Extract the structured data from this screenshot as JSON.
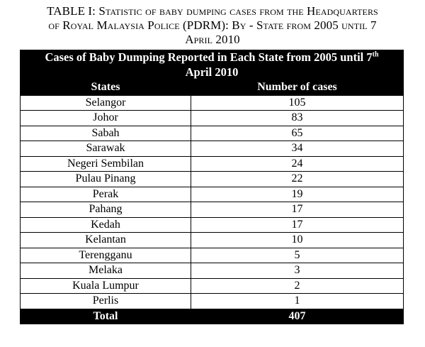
{
  "caption": {
    "line1": "TABLE I: Statistic of baby dumping cases from the Headquarters",
    "line2": "of Royal Malaysia Police (PDRM): By - State from 2005 until 7",
    "line3": "April 2010"
  },
  "table": {
    "title_main": "Cases of Baby Dumping Reported in Each State from 2005 until 7",
    "title_sup": "th",
    "title_line2": "April 2010",
    "columns": [
      "States",
      "Number of cases"
    ],
    "rows": [
      {
        "state": "Selangor",
        "cases": "105"
      },
      {
        "state": "Johor",
        "cases": "83"
      },
      {
        "state": "Sabah",
        "cases": "65"
      },
      {
        "state": "Sarawak",
        "cases": "34"
      },
      {
        "state": "Negeri Sembilan",
        "cases": "24"
      },
      {
        "state": "Pulau Pinang",
        "cases": "22"
      },
      {
        "state": "Perak",
        "cases": "19"
      },
      {
        "state": "Pahang",
        "cases": "17"
      },
      {
        "state": "Kedah",
        "cases": "17"
      },
      {
        "state": "Kelantan",
        "cases": "10"
      },
      {
        "state": "Terengganu",
        "cases": "5"
      },
      {
        "state": "Melaka",
        "cases": "3"
      },
      {
        "state": "Kuala Lumpur",
        "cases": "2"
      },
      {
        "state": "Perlis",
        "cases": "1"
      }
    ],
    "total": {
      "label": "Total",
      "value": "407"
    }
  }
}
